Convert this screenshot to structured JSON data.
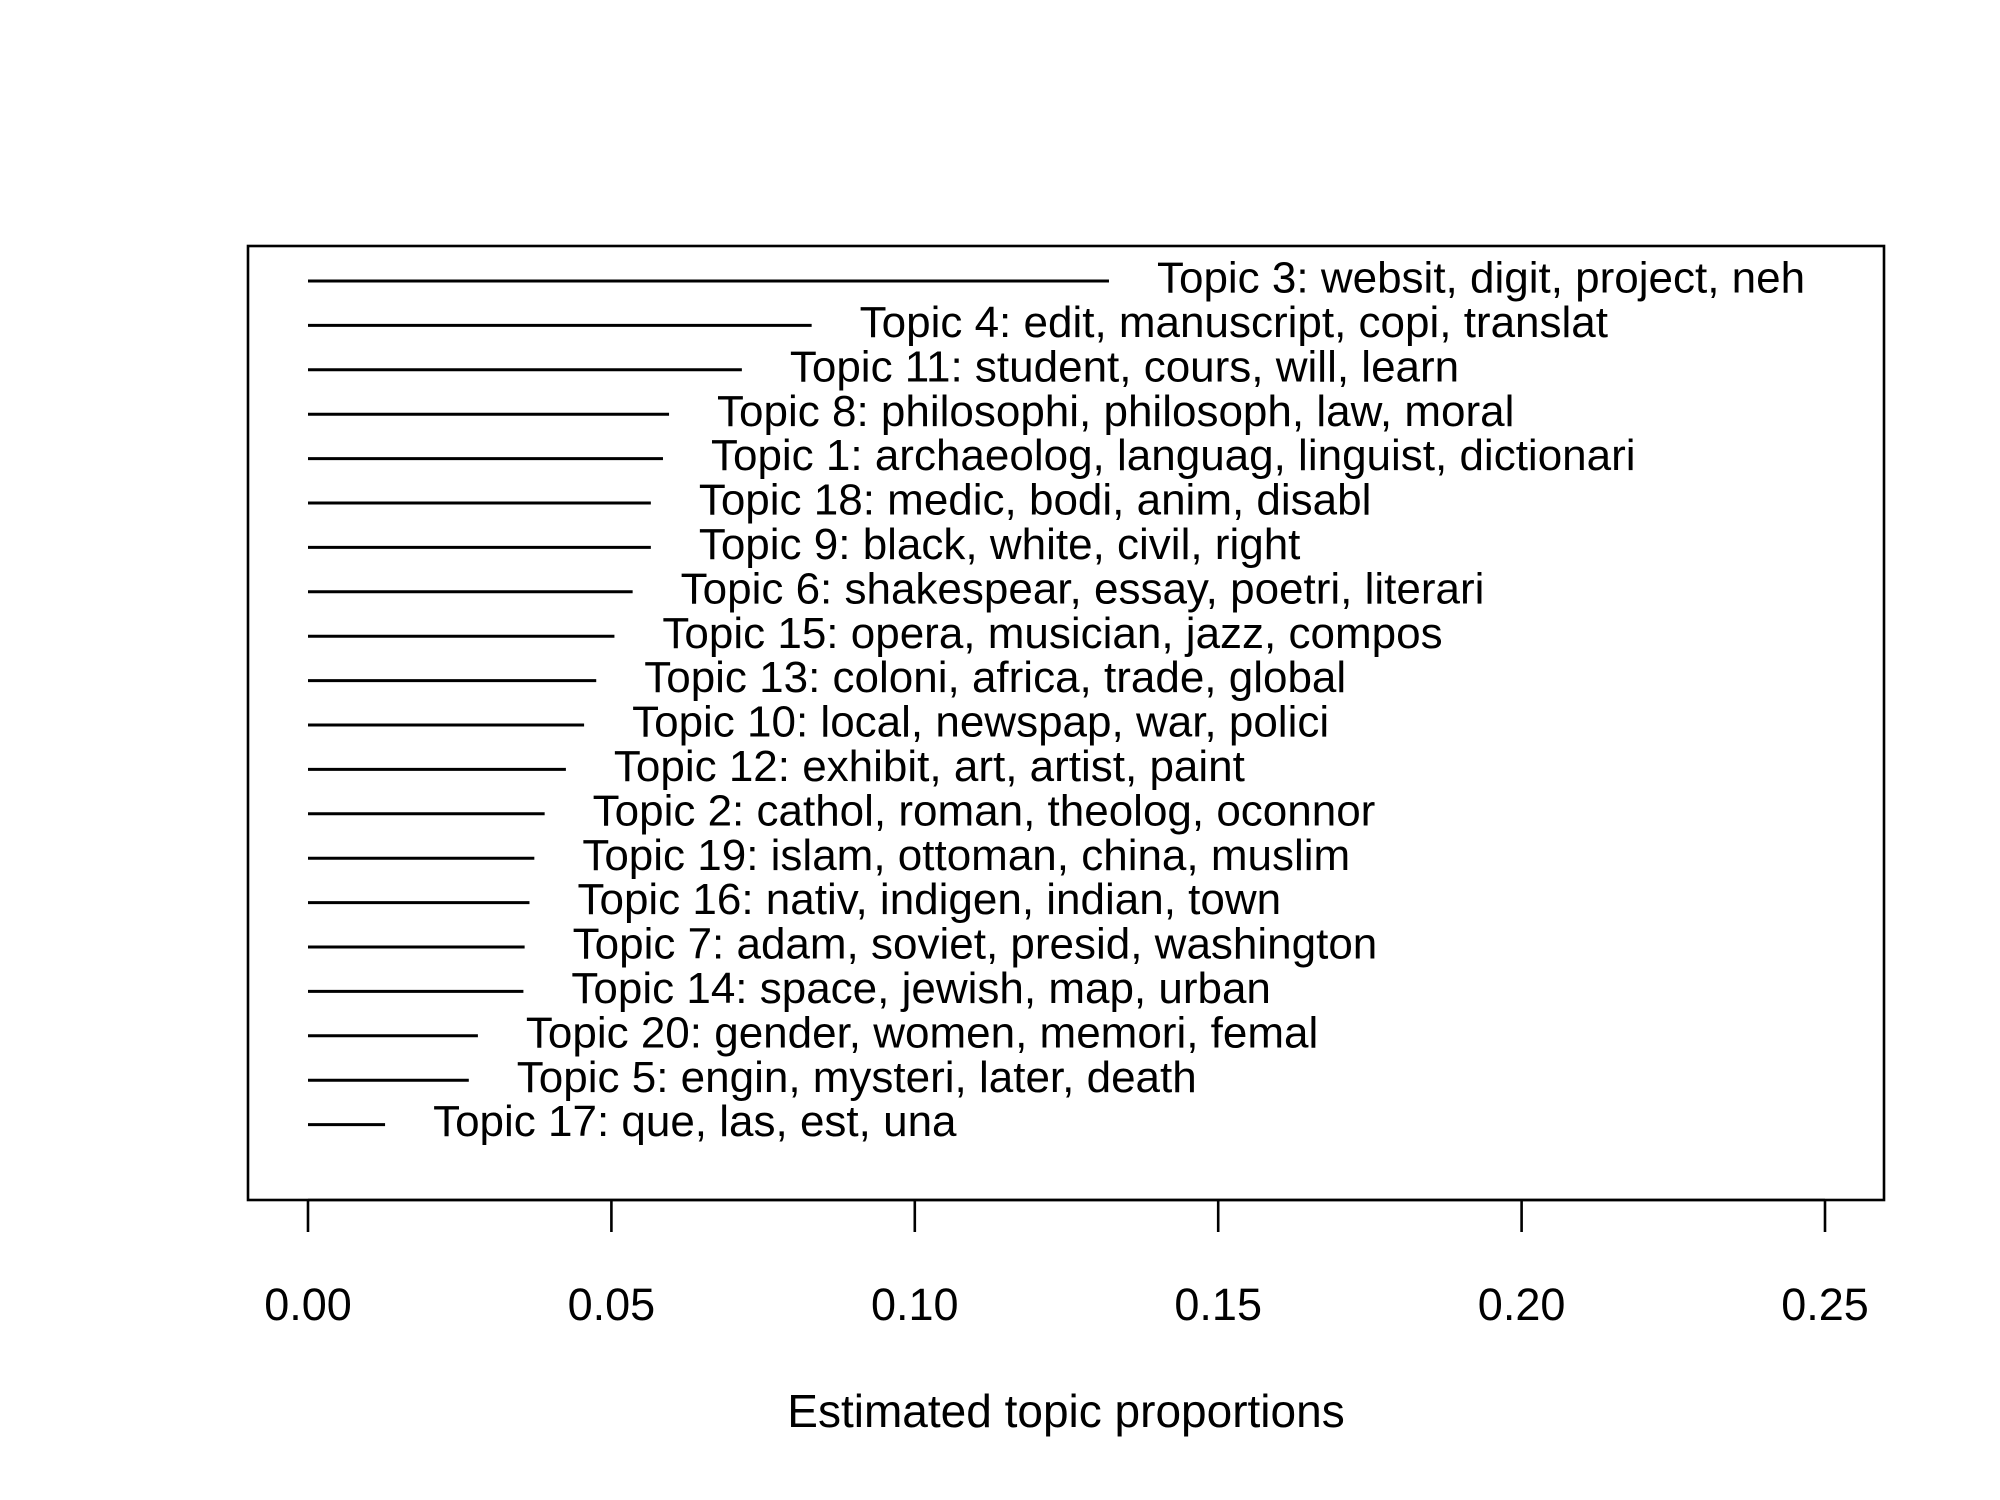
{
  "chart_data": {
    "type": "bar",
    "orientation": "horizontal",
    "xlabel": "Estimated topic proportions",
    "xlim": [
      0,
      0.25
    ],
    "x_ticks": [
      "0.00",
      "0.05",
      "0.10",
      "0.15",
      "0.20",
      "0.25"
    ],
    "x_tick_values": [
      0,
      0.05,
      0.1,
      0.15,
      0.2,
      0.25
    ],
    "grid": false,
    "legend": "none",
    "colors": {
      "line": "#000000",
      "text": "#000000",
      "background": "#ffffff"
    },
    "topics": [
      {
        "label": "Topic 3: websit, digit, project, neh",
        "value": 0.132
      },
      {
        "label": "Topic 4: edit, manuscript, copi, translat",
        "value": 0.083
      },
      {
        "label": "Topic 11: student, cours, will, learn",
        "value": 0.0715
      },
      {
        "label": "Topic 8: philosophi, philosoph, law, moral",
        "value": 0.0595
      },
      {
        "label": "Topic 1: archaeolog, languag, linguist, dictionari",
        "value": 0.0585
      },
      {
        "label": "Topic 18: medic, bodi, anim, disabl",
        "value": 0.0565
      },
      {
        "label": "Topic 9: black, white, civil, right",
        "value": 0.0565
      },
      {
        "label": "Topic 6: shakespear, essay, poetri, literari",
        "value": 0.0535
      },
      {
        "label": "Topic 15: opera, musician, jazz, compos",
        "value": 0.0505
      },
      {
        "label": "Topic 13: coloni, africa, trade, global",
        "value": 0.0475
      },
      {
        "label": "Topic 10: local, newspap, war, polici",
        "value": 0.0455
      },
      {
        "label": "Topic 12: exhibit, art, artist, paint",
        "value": 0.0425
      },
      {
        "label": "Topic 2: cathol, roman, theolog, oconnor",
        "value": 0.039
      },
      {
        "label": "Topic 19: islam, ottoman, china, muslim",
        "value": 0.0373
      },
      {
        "label": "Topic 16: nativ, indigen, indian, town",
        "value": 0.0365
      },
      {
        "label": "Topic 7: adam, soviet, presid, washington",
        "value": 0.0357
      },
      {
        "label": "Topic 14: space, jewish, map, urban",
        "value": 0.0355
      },
      {
        "label": "Topic 20: gender, women, memori, femal",
        "value": 0.028
      },
      {
        "label": "Topic 5: engin, mysteri, later, death",
        "value": 0.0265
      },
      {
        "label": "Topic 17: que, las, est, una",
        "value": 0.0127
      }
    ]
  }
}
